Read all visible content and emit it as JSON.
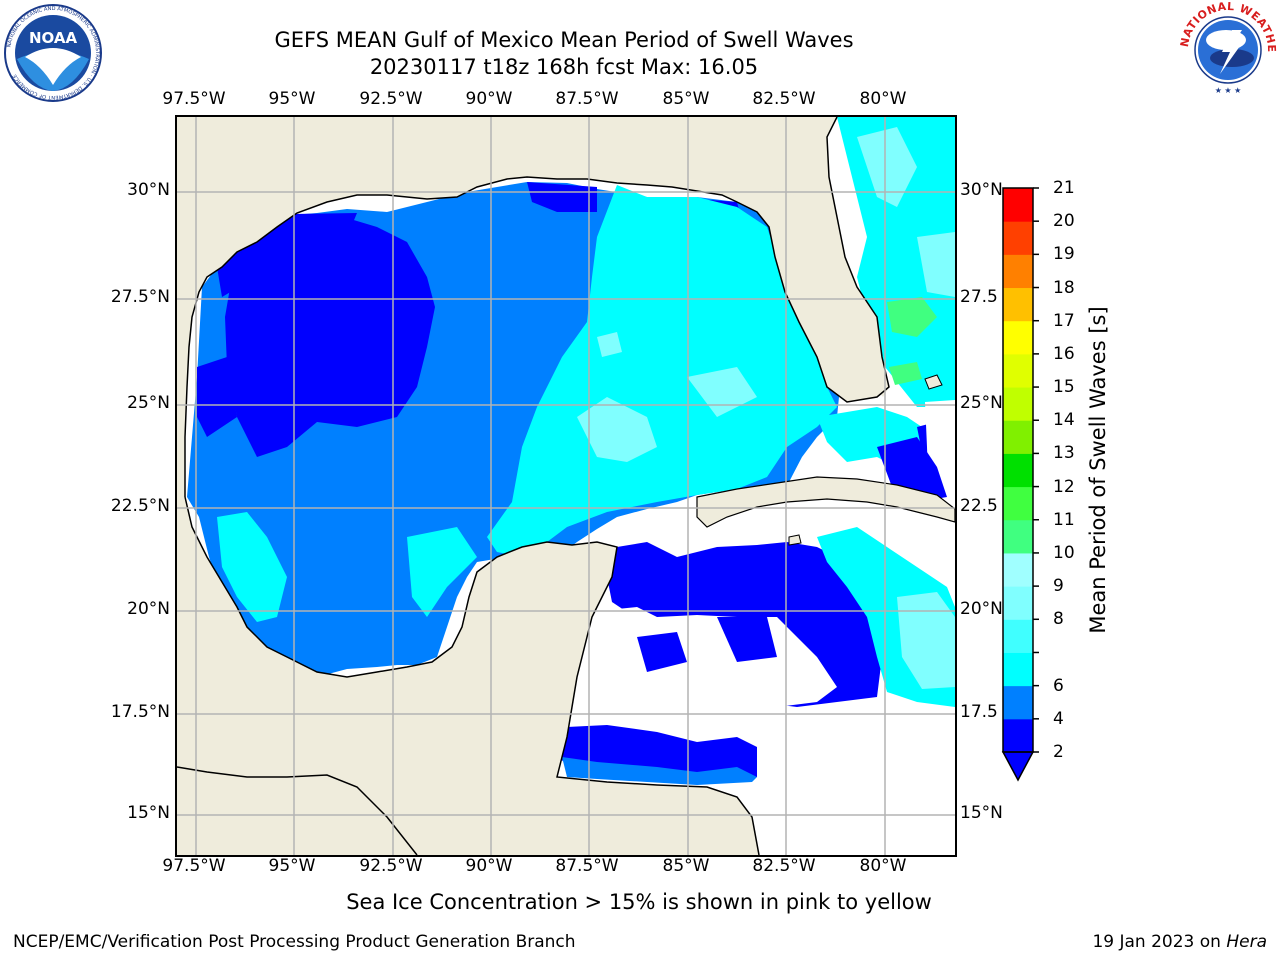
{
  "header": {
    "title_line1": "GEFS MEAN Gulf of Mexico Mean Period of Swell Waves",
    "title_line2": "20230117 t18z 168h fcst   Max: 16.05"
  },
  "logos": {
    "left": "NOAA",
    "left_ring": "NATIONAL OCEANIC AND ATMOSPHERIC ADMINISTRATION · U.S. DEPARTMENT OF COMMERCE",
    "right_ring": "NATIONAL WEATHER SERVICE"
  },
  "map": {
    "lon_labels": [
      "97.5°W",
      "95°W",
      "92.5°W",
      "90°W",
      "87.5°W",
      "85°W",
      "82.5°W",
      "80°W"
    ],
    "lat_labels_left": [
      "30°N",
      "27.5°N",
      "25°N",
      "22.5°N",
      "20°N",
      "17.5°N",
      "15°N"
    ],
    "lat_labels_right": [
      "30°N",
      "27.5",
      "25°N",
      "22.5",
      "20°N",
      "17.5",
      "15°N"
    ],
    "colors": {
      "land": "#efecdc",
      "ocean_nodata": "#ffffff",
      "grid": "#b3b3b3",
      "coast": "#000000"
    }
  },
  "colorbar": {
    "title": "Mean Period of Swell Waves [s]",
    "levels": [
      2,
      4,
      6,
      7,
      8,
      9,
      10,
      11,
      12,
      13,
      14,
      15,
      16,
      17,
      18,
      19,
      20,
      21
    ],
    "colors": [
      "#0000ff",
      "#0080ff",
      "#00ffff",
      "#40ffff",
      "#80ffff",
      "#a0ffff",
      "#40ff80",
      "#40ff40",
      "#00e000",
      "#80f000",
      "#c0ff00",
      "#e0ff00",
      "#ffff00",
      "#ffc000",
      "#ff8000",
      "#ff4000",
      "#ff0000"
    ],
    "extend_min_color": "#0000ff",
    "tick_labels": [
      "2",
      "4",
      "6",
      "8",
      "9",
      "10",
      "11",
      "12",
      "13",
      "14",
      "15",
      "16",
      "17",
      "18",
      "19",
      "20",
      "21"
    ]
  },
  "note": "Sea Ice Concentration > 15% is shown in pink to yellow",
  "footer": {
    "left": "NCEP/EMC/Verification Post Processing Product Generation Branch",
    "date": "19 Jan 2023 on ",
    "machine": "Hera"
  }
}
